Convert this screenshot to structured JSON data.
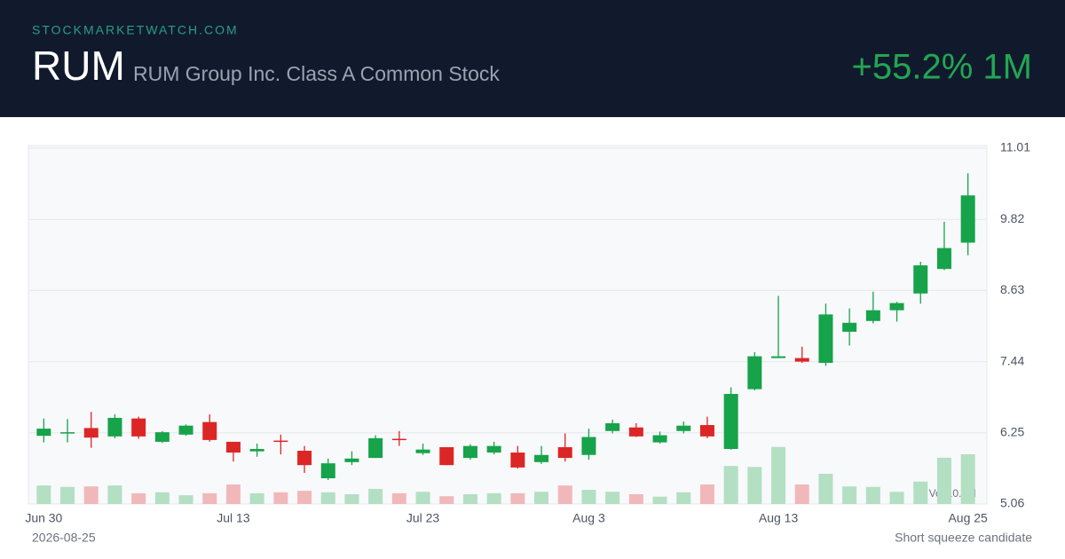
{
  "chart_data": {
    "type": "candlestick",
    "site": "STOCKMARKETWATCH.COM",
    "ticker": "RUM",
    "title": "RUM Group Inc. Class A Common Stock",
    "change": "+55.2% 1M",
    "date": "2026-08-25",
    "note": "Short squeeze candidate",
    "volume_label": "Vol 10.2M",
    "categories": [
      "Jun 30",
      null,
      null,
      null,
      null,
      null,
      null,
      null,
      "Jul 13",
      null,
      null,
      null,
      null,
      null,
      null,
      null,
      "Jul 23",
      null,
      null,
      null,
      null,
      null,
      null,
      "Aug 3",
      null,
      null,
      null,
      null,
      null,
      null,
      null,
      "Aug 13",
      null,
      null,
      null,
      null,
      null,
      null,
      null,
      "Aug 25"
    ],
    "open": [
      6.2,
      6.24,
      6.33,
      6.19,
      6.49,
      6.1,
      6.22,
      6.43,
      6.1,
      5.94,
      6.12,
      5.95,
      5.49,
      5.76,
      5.83,
      6.15,
      5.91,
      6.01,
      5.83,
      5.92,
      5.92,
      5.76,
      6.01,
      5.88,
      6.28,
      6.34,
      6.09,
      6.28,
      6.38,
      5.98,
      6.98,
      7.5,
      7.5,
      7.42,
      7.94,
      8.12,
      8.3,
      8.58,
      8.99,
      9.43
    ],
    "high": [
      6.49,
      6.48,
      6.6,
      6.56,
      6.52,
      6.28,
      6.39,
      6.56,
      6.1,
      6.07,
      6.22,
      6.03,
      5.82,
      5.94,
      6.21,
      6.28,
      6.07,
      6.01,
      6.06,
      6.1,
      6.03,
      6.03,
      6.24,
      6.32,
      6.47,
      6.41,
      6.27,
      6.44,
      6.52,
      7.01,
      7.6,
      8.54,
      7.69,
      8.41,
      8.33,
      8.61,
      8.44,
      9.11,
      9.78,
      10.59
    ],
    "low": [
      6.09,
      6.09,
      6.0,
      6.16,
      6.15,
      6.08,
      6.2,
      6.1,
      5.77,
      5.85,
      5.89,
      5.58,
      5.46,
      5.71,
      5.83,
      6.03,
      5.88,
      5.71,
      5.8,
      5.89,
      5.65,
      5.73,
      5.77,
      5.8,
      6.24,
      6.18,
      6.07,
      6.24,
      6.16,
      5.97,
      6.96,
      7.5,
      7.42,
      7.37,
      7.71,
      8.08,
      8.11,
      8.41,
      8.97,
      9.22
    ],
    "close": [
      6.32,
      6.26,
      6.17,
      6.5,
      6.19,
      6.26,
      6.37,
      6.13,
      5.92,
      5.98,
      6.11,
      5.71,
      5.74,
      5.82,
      6.16,
      6.13,
      5.97,
      5.71,
      6.03,
      6.03,
      5.67,
      5.88,
      5.83,
      6.18,
      6.41,
      6.19,
      6.21,
      6.37,
      6.19,
      6.9,
      7.53,
      7.53,
      7.44,
      8.23,
      8.09,
      8.3,
      8.42,
      9.05,
      9.34,
      10.22
    ],
    "volume": [
      3.8,
      3.5,
      3.6,
      3.8,
      2.2,
      2.4,
      1.8,
      2.2,
      4.0,
      2.2,
      2.4,
      2.7,
      2.4,
      2.0,
      3.1,
      2.2,
      2.5,
      1.6,
      2.0,
      2.2,
      2.2,
      2.5,
      3.8,
      2.9,
      2.5,
      2.0,
      1.5,
      2.4,
      4.0,
      7.8,
      7.6,
      11.7,
      4.0,
      6.2,
      3.6,
      3.5,
      2.5,
      4.6,
      9.5,
      10.2
    ],
    "vlim": [
      0,
      73
    ],
    "ylim": [
      5.06,
      11.01
    ],
    "yticks": [
      5.06,
      6.25,
      7.44,
      8.63,
      9.82,
      11.01
    ],
    "grid": true,
    "up_color": "#16a34a",
    "down_color": "#dc2626",
    "up_volume_color": "#b3dfc3",
    "down_volume_color": "#f1b8ba"
  }
}
